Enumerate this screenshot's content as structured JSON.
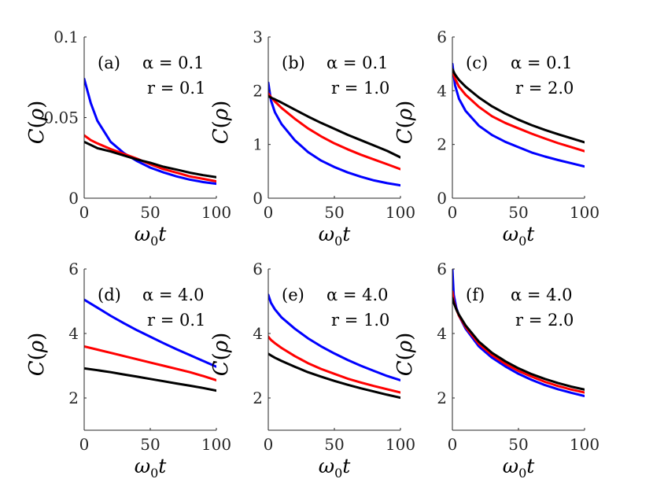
{
  "figure": {
    "x_label_text": "ω₀t",
    "y_label_text": "C(ρ)"
  },
  "colors": {
    "blue": "#0000ff",
    "red": "#ff0000",
    "black": "#000000"
  },
  "chart_data": [
    {
      "type": "line",
      "panel": "(a)",
      "annotation_alpha": "α = 0.1",
      "annotation_r": "r = 0.1",
      "xlabel": "ω₀t",
      "ylabel": "C(ρ)",
      "xlim": [
        0,
        100
      ],
      "ylim": [
        0,
        0.1
      ],
      "x_ticks": [
        0,
        50,
        100
      ],
      "x_ticklabels": [
        "0",
        "50",
        "100"
      ],
      "y_ticks": [
        0,
        0.05,
        0.1
      ],
      "y_ticklabels": [
        "0",
        "0.05",
        "0.1"
      ],
      "x": [
        0,
        5,
        10,
        20,
        30,
        40,
        50,
        60,
        70,
        80,
        90,
        100
      ],
      "series": [
        {
          "name": "blue",
          "color": "#0000ff",
          "values": [
            0.074,
            0.059,
            0.048,
            0.035,
            0.028,
            0.023,
            0.019,
            0.016,
            0.0135,
            0.0115,
            0.01,
            0.009
          ]
        },
        {
          "name": "red",
          "color": "#ff0000",
          "values": [
            0.039,
            0.036,
            0.034,
            0.0305,
            0.0275,
            0.0245,
            0.021,
            0.018,
            0.0158,
            0.0135,
            0.012,
            0.0105
          ]
        },
        {
          "name": "black",
          "color": "#000000",
          "values": [
            0.035,
            0.033,
            0.031,
            0.029,
            0.0265,
            0.024,
            0.022,
            0.0195,
            0.0177,
            0.0158,
            0.0143,
            0.013
          ]
        }
      ]
    },
    {
      "type": "line",
      "panel": "(b)",
      "annotation_alpha": "α = 0.1",
      "annotation_r": "r = 1.0",
      "xlabel": "ω₀t",
      "ylabel": "C(ρ)",
      "xlim": [
        0,
        100
      ],
      "ylim": [
        0,
        3
      ],
      "x_ticks": [
        0,
        50,
        100
      ],
      "x_ticklabels": [
        "0",
        "50",
        "100"
      ],
      "y_ticks": [
        0,
        1,
        2,
        3
      ],
      "y_ticklabels": [
        "0",
        "1",
        "2",
        "3"
      ],
      "x": [
        0,
        2,
        5,
        10,
        20,
        30,
        40,
        50,
        60,
        70,
        80,
        90,
        100
      ],
      "series": [
        {
          "name": "blue",
          "color": "#0000ff",
          "values": [
            2.15,
            1.82,
            1.6,
            1.38,
            1.08,
            0.86,
            0.7,
            0.58,
            0.48,
            0.4,
            0.33,
            0.28,
            0.24
          ]
        },
        {
          "name": "red",
          "color": "#ff0000",
          "values": [
            1.95,
            1.88,
            1.8,
            1.68,
            1.48,
            1.3,
            1.15,
            1.02,
            0.91,
            0.81,
            0.72,
            0.63,
            0.54
          ]
        },
        {
          "name": "black",
          "color": "#000000",
          "values": [
            1.9,
            1.87,
            1.84,
            1.78,
            1.65,
            1.52,
            1.4,
            1.29,
            1.18,
            1.08,
            0.98,
            0.88,
            0.76
          ]
        }
      ]
    },
    {
      "type": "line",
      "panel": "(c)",
      "annotation_alpha": "α = 0.1",
      "annotation_r": "r = 2.0",
      "xlabel": "ω₀t",
      "ylabel": "C(ρ)",
      "xlim": [
        0,
        100
      ],
      "ylim": [
        0,
        6
      ],
      "x_ticks": [
        0,
        50,
        100
      ],
      "x_ticklabels": [
        "0",
        "50",
        "100"
      ],
      "y_ticks": [
        0,
        2,
        4,
        6
      ],
      "y_ticklabels": [
        "0",
        "2",
        "4",
        "6"
      ],
      "x": [
        0,
        2,
        5,
        10,
        20,
        30,
        40,
        50,
        60,
        70,
        80,
        90,
        100
      ],
      "series": [
        {
          "name": "blue",
          "color": "#0000ff",
          "values": [
            5.0,
            4.2,
            3.7,
            3.25,
            2.7,
            2.35,
            2.1,
            1.9,
            1.7,
            1.55,
            1.42,
            1.3,
            1.18
          ]
        },
        {
          "name": "red",
          "color": "#ff0000",
          "values": [
            4.75,
            4.45,
            4.15,
            3.85,
            3.4,
            3.05,
            2.8,
            2.6,
            2.4,
            2.22,
            2.05,
            1.9,
            1.75
          ]
        },
        {
          "name": "black",
          "color": "#000000",
          "values": [
            4.8,
            4.6,
            4.4,
            4.15,
            3.75,
            3.42,
            3.15,
            2.92,
            2.72,
            2.54,
            2.38,
            2.23,
            2.08
          ]
        }
      ]
    },
    {
      "type": "line",
      "panel": "(d)",
      "annotation_alpha": "α = 4.0",
      "annotation_r": "r = 0.1",
      "xlabel": "ω₀t",
      "ylabel": "C(ρ)",
      "xlim": [
        0,
        100
      ],
      "ylim": [
        1,
        6
      ],
      "x_ticks": [
        0,
        50,
        100
      ],
      "x_ticklabels": [
        "0",
        "50",
        "100"
      ],
      "y_ticks": [
        2,
        4,
        6
      ],
      "y_ticklabels": [
        "2",
        "4",
        "6"
      ],
      "x": [
        0,
        10,
        20,
        30,
        40,
        50,
        60,
        70,
        80,
        90,
        100
      ],
      "series": [
        {
          "name": "blue",
          "color": "#0000ff",
          "values": [
            5.05,
            4.8,
            4.55,
            4.32,
            4.1,
            3.9,
            3.7,
            3.51,
            3.33,
            3.15,
            2.97
          ]
        },
        {
          "name": "red",
          "color": "#ff0000",
          "values": [
            3.6,
            3.5,
            3.4,
            3.3,
            3.2,
            3.1,
            3.0,
            2.9,
            2.8,
            2.68,
            2.55
          ]
        },
        {
          "name": "black",
          "color": "#000000",
          "values": [
            2.92,
            2.86,
            2.8,
            2.73,
            2.66,
            2.59,
            2.52,
            2.45,
            2.38,
            2.31,
            2.23
          ]
        }
      ]
    },
    {
      "type": "line",
      "panel": "(e)",
      "annotation_alpha": "α = 4.0",
      "annotation_r": "r = 1.0",
      "xlabel": "ω₀t",
      "ylabel": "C(ρ)",
      "xlim": [
        0,
        100
      ],
      "ylim": [
        1,
        6
      ],
      "x_ticks": [
        0,
        50,
        100
      ],
      "x_ticklabels": [
        "0",
        "50",
        "100"
      ],
      "y_ticks": [
        2,
        4,
        6
      ],
      "y_ticklabels": [
        "2",
        "4",
        "6"
      ],
      "x": [
        0,
        2,
        5,
        10,
        20,
        30,
        40,
        50,
        60,
        70,
        80,
        90,
        100
      ],
      "series": [
        {
          "name": "blue",
          "color": "#0000ff",
          "values": [
            5.2,
            4.95,
            4.75,
            4.5,
            4.15,
            3.85,
            3.6,
            3.38,
            3.18,
            3.0,
            2.84,
            2.68,
            2.55
          ]
        },
        {
          "name": "red",
          "color": "#ff0000",
          "values": [
            3.9,
            3.8,
            3.7,
            3.55,
            3.3,
            3.08,
            2.9,
            2.75,
            2.6,
            2.48,
            2.37,
            2.27,
            2.17
          ]
        },
        {
          "name": "black",
          "color": "#000000",
          "values": [
            3.37,
            3.32,
            3.25,
            3.15,
            2.97,
            2.8,
            2.66,
            2.53,
            2.41,
            2.3,
            2.2,
            2.1,
            2.01
          ]
        }
      ]
    },
    {
      "type": "line",
      "panel": "(f)",
      "annotation_alpha": "α = 4.0",
      "annotation_r": "r = 2.0",
      "xlabel": "ω₀t",
      "ylabel": "C(ρ)",
      "xlim": [
        0,
        100
      ],
      "ylim": [
        1,
        6
      ],
      "x_ticks": [
        0,
        50,
        100
      ],
      "x_ticklabels": [
        "0",
        "50",
        "100"
      ],
      "y_ticks": [
        2,
        4,
        6
      ],
      "y_ticklabels": [
        "2",
        "4",
        "6"
      ],
      "x": [
        0,
        1,
        3,
        5,
        10,
        20,
        30,
        40,
        50,
        60,
        70,
        80,
        90,
        100
      ],
      "series": [
        {
          "name": "blue",
          "color": "#0000ff",
          "values": [
            6.0,
            5.2,
            4.8,
            4.55,
            4.15,
            3.6,
            3.25,
            2.98,
            2.75,
            2.56,
            2.4,
            2.27,
            2.16,
            2.06
          ]
        },
        {
          "name": "red",
          "color": "#ff0000",
          "values": [
            5.3,
            5.0,
            4.75,
            4.55,
            4.2,
            3.68,
            3.33,
            3.06,
            2.84,
            2.66,
            2.5,
            2.37,
            2.26,
            2.17
          ]
        },
        {
          "name": "black",
          "color": "#000000",
          "values": [
            5.1,
            4.95,
            4.75,
            4.58,
            4.25,
            3.75,
            3.4,
            3.14,
            2.92,
            2.74,
            2.59,
            2.46,
            2.35,
            2.26
          ]
        }
      ]
    }
  ]
}
